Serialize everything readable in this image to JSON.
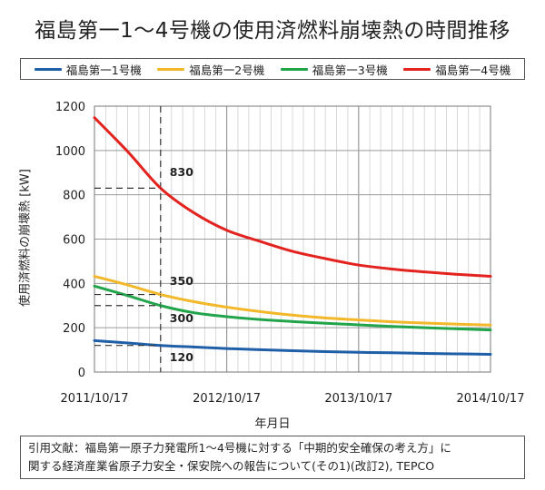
{
  "chart_data": {
    "type": "line",
    "title": "福島第一1〜4号機の使用済燃料崩壊熱の時間推移",
    "xlabel": "年月日",
    "ylabel": "使用済燃料の崩壊熱 [kW]",
    "ylim": [
      0,
      1200
    ],
    "yticks": [
      "0",
      "200",
      "400",
      "600",
      "800",
      "1000",
      "1200"
    ],
    "xlim": [
      "2011-10-17",
      "2014-10-17"
    ],
    "xticks": [
      "2011/10/17",
      "2012/10/17",
      "2013/10/17",
      "2014/10/17"
    ],
    "x": [
      "2011-10-17",
      "2012-01-17",
      "2012-04-17",
      "2012-07-17",
      "2012-10-17",
      "2013-01-17",
      "2013-04-17",
      "2013-07-17",
      "2013-10-17",
      "2014-01-17",
      "2014-04-17",
      "2014-07-17",
      "2014-10-17"
    ],
    "series": [
      {
        "name": "福島第一1号機",
        "color": "#1f5fa8",
        "values": [
          142,
          131,
          120,
          113,
          106,
          101,
          96,
          92,
          89,
          87,
          84,
          82,
          80
        ]
      },
      {
        "name": "福島第一2号機",
        "color": "#f2b829",
        "values": [
          432,
          393,
          350,
          318,
          293,
          273,
          257,
          244,
          235,
          227,
          221,
          216,
          212
        ]
      },
      {
        "name": "福島第一3号機",
        "color": "#22a44a",
        "values": [
          388,
          345,
          300,
          268,
          250,
          237,
          228,
          220,
          213,
          206,
          200,
          195,
          190
        ]
      },
      {
        "name": "福島第一4号機",
        "color": "#e3231f",
        "values": [
          1148,
          995,
          830,
          720,
          640,
          590,
          545,
          512,
          483,
          465,
          452,
          441,
          432
        ]
      }
    ],
    "reference": {
      "date": "2012-04-17",
      "annotations": [
        {
          "label": "830",
          "value": 830
        },
        {
          "label": "350",
          "value": 350
        },
        {
          "label": "300",
          "value": 300
        },
        {
          "label": "120",
          "value": 120
        }
      ]
    },
    "grid": true,
    "legend": "top"
  },
  "citation": {
    "line1": "引用文献：福島第一原子力発電所1〜4号機に対する「中期的安全確保の考え方」に",
    "line2": "関する経済産業省原子力安全・保安院への報告について(その1)(改訂2), TEPCO"
  }
}
